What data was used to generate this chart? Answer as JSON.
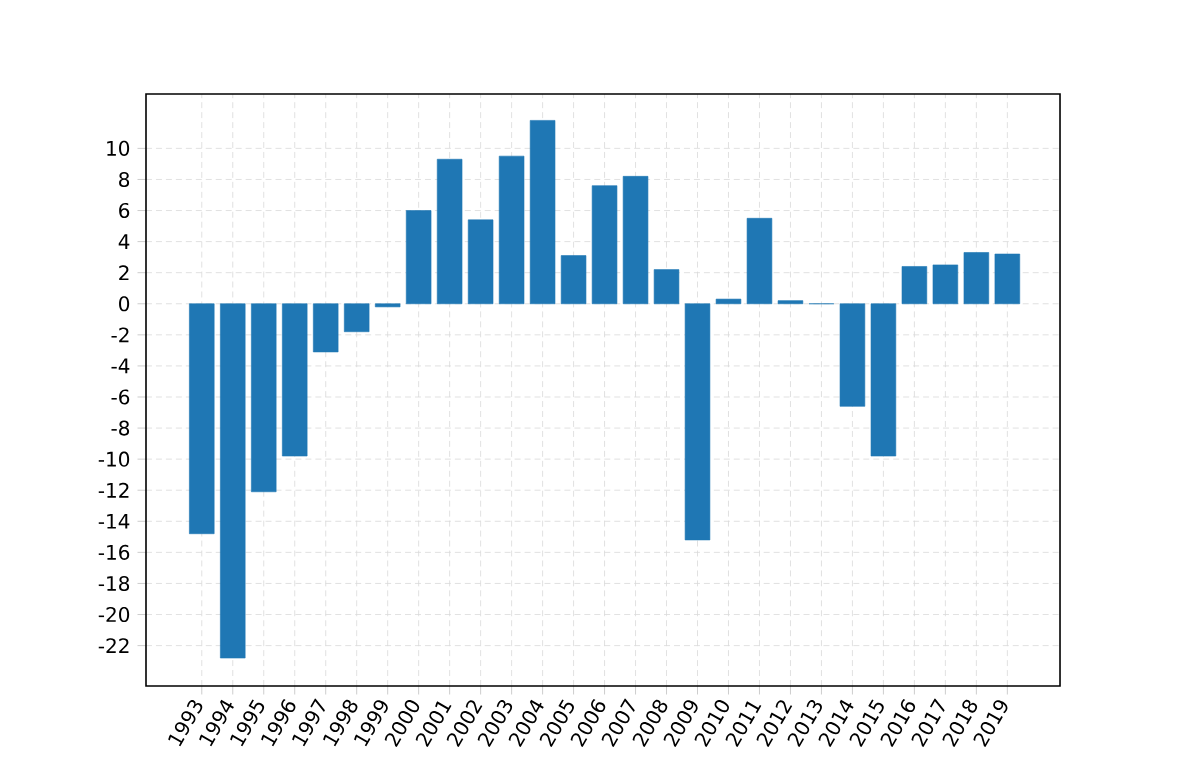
{
  "chart_data": {
    "type": "bar",
    "categories": [
      "1993",
      "1994",
      "1995",
      "1996",
      "1997",
      "1998",
      "1999",
      "2000",
      "2001",
      "2002",
      "2003",
      "2004",
      "2005",
      "2006",
      "2007",
      "2008",
      "2009",
      "2010",
      "2011",
      "2012",
      "2013",
      "2014",
      "2015",
      "2016",
      "2017",
      "2018",
      "2019"
    ],
    "values": [
      -14.8,
      -22.8,
      -12.1,
      -9.8,
      -3.1,
      -1.8,
      -0.2,
      6.0,
      9.3,
      5.4,
      9.5,
      11.8,
      3.1,
      7.6,
      8.2,
      2.2,
      -15.2,
      0.3,
      5.5,
      0.2,
      0.0,
      -6.6,
      -9.8,
      2.4,
      2.5,
      3.3,
      3.2
    ],
    "color": "#1f77b4",
    "ylim": [
      -24.6,
      13.5
    ],
    "yticks": [
      -22,
      -20,
      -18,
      -16,
      -14,
      -12,
      -10,
      -8,
      -6,
      -4,
      -2,
      0,
      2,
      4,
      6,
      8,
      10
    ],
    "grid": true
  }
}
